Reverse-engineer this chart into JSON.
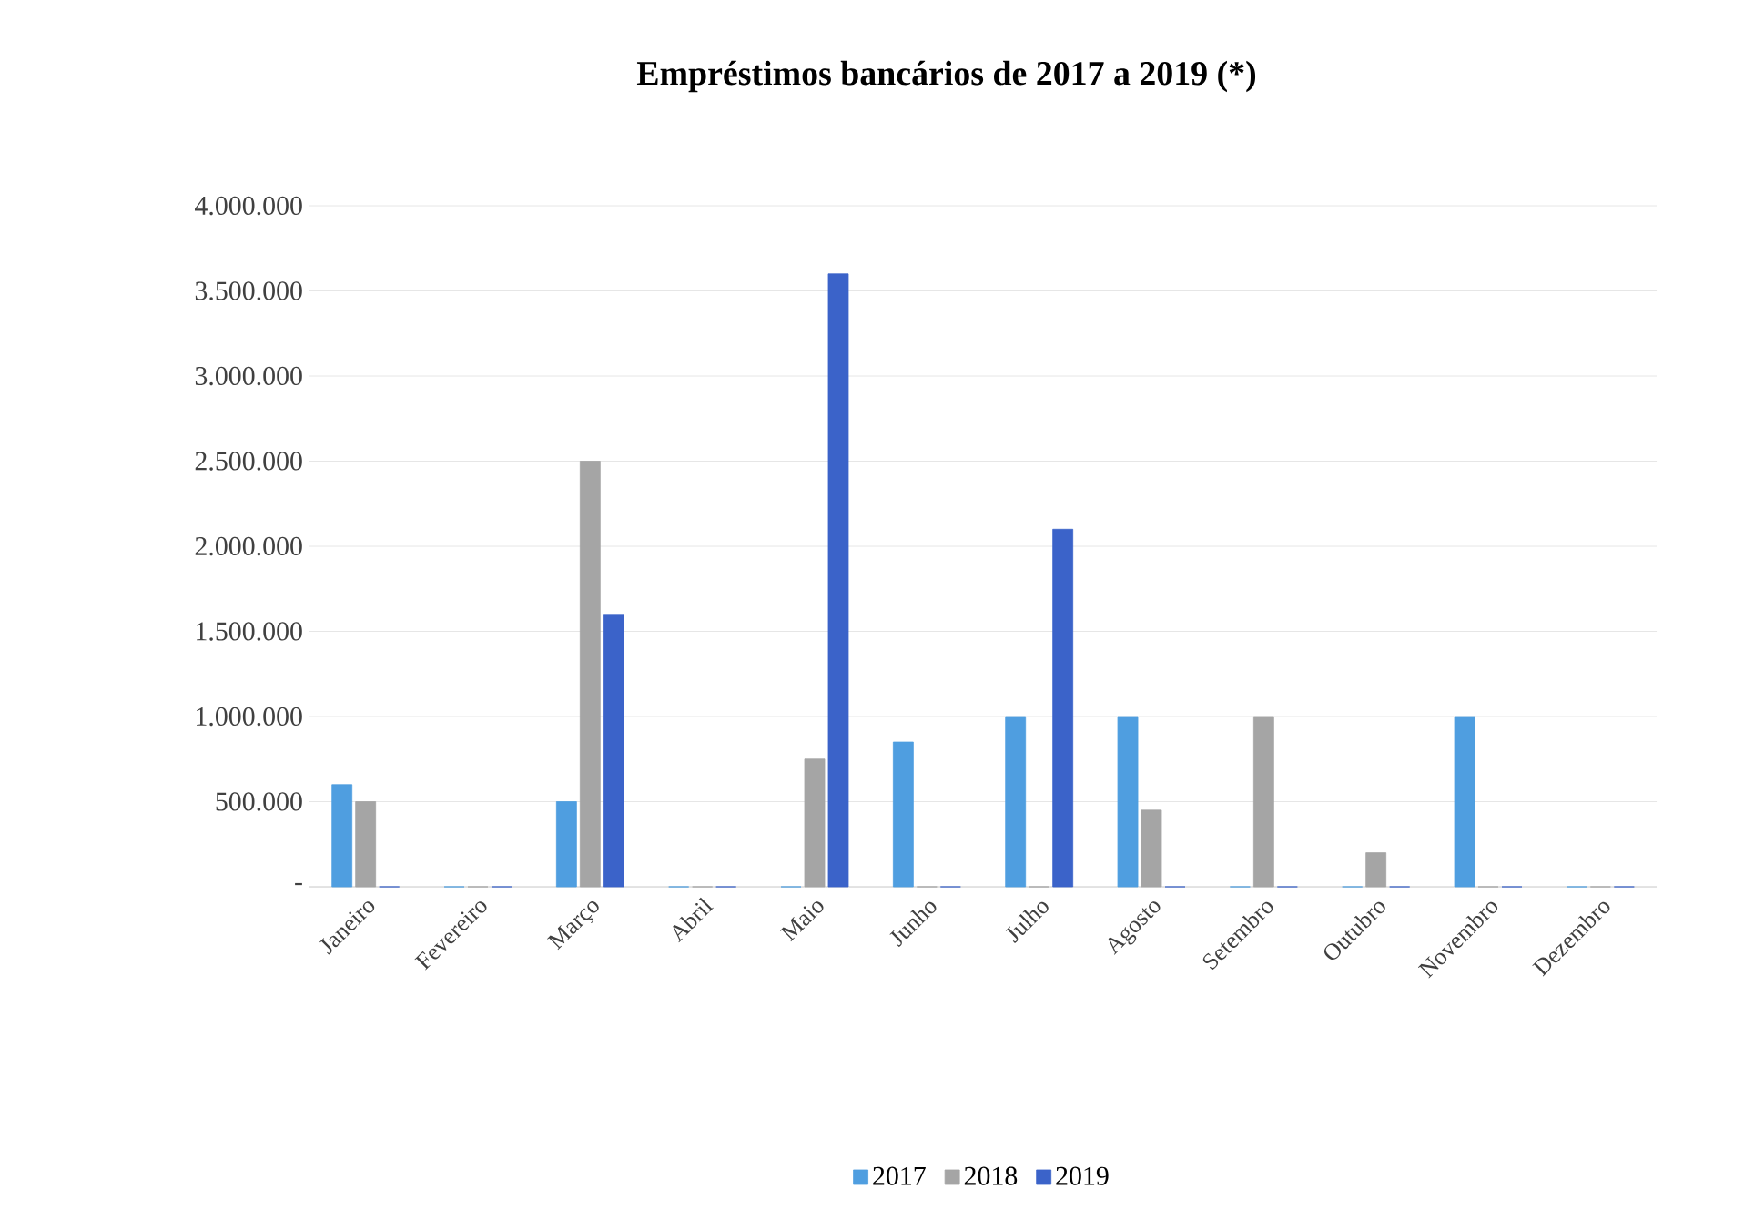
{
  "chart_data": {
    "type": "bar",
    "title": "Empréstimos bancários de 2017 a 2019 (*)",
    "categories": [
      "Janeiro",
      "Fevereiro",
      "Março",
      "Abril",
      "Maio",
      "Junho",
      "Julho",
      "Agosto",
      "Setembro",
      "Outubro",
      "Novembro",
      "Dezembro"
    ],
    "series": [
      {
        "name": "2017",
        "color": "#4f9ee0",
        "values": [
          600000,
          0,
          500000,
          0,
          0,
          850000,
          1000000,
          1000000,
          0,
          0,
          1000000,
          0
        ]
      },
      {
        "name": "2018",
        "color": "#a5a5a5",
        "values": [
          500000,
          0,
          2500000,
          0,
          750000,
          0,
          0,
          450000,
          1000000,
          200000,
          0,
          0
        ]
      },
      {
        "name": "2019",
        "color": "#3b63c9",
        "values": [
          0,
          0,
          1600000,
          0,
          3600000,
          0,
          2100000,
          0,
          0,
          0,
          0,
          0
        ]
      }
    ],
    "ylim": [
      0,
      4000000
    ],
    "yticks": [
      {
        "value": 0,
        "label": "-"
      },
      {
        "value": 500000,
        "label": "500.000"
      },
      {
        "value": 1000000,
        "label": "1.000.000"
      },
      {
        "value": 1500000,
        "label": "1.500.000"
      },
      {
        "value": 2000000,
        "label": "2.000.000"
      },
      {
        "value": 2500000,
        "label": "2.500.000"
      },
      {
        "value": 3000000,
        "label": "3.000.000"
      },
      {
        "value": 3500000,
        "label": "3.500.000"
      },
      {
        "value": 4000000,
        "label": "4.000.000"
      }
    ],
    "grid": "y",
    "legend": "bottom"
  }
}
